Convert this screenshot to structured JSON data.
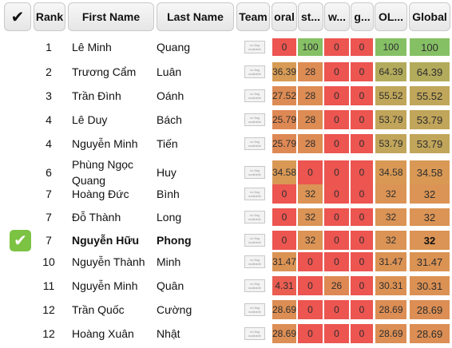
{
  "header": {
    "check": "✔",
    "rank": "Rank",
    "first_name": "First Name",
    "last_name": "Last Name",
    "team": "Team",
    "col1": "oral",
    "col2": "st...",
    "col3": "w...",
    "col4": "g...",
    "col5": "OL...",
    "col6": "Global"
  },
  "flag_text": "no flag available",
  "selected_check": "✔",
  "colors": {
    "header_bg": "#ececec",
    "check_green": "#7cc243",
    "cell_red": "#ec5550",
    "cell_orange": "#d99a55",
    "cell_green": "#86c065"
  },
  "rows": [
    {
      "rank": "1",
      "first": "Lê Minh",
      "last": "Quang",
      "scores": [
        "0",
        "100",
        "0",
        "0",
        "100",
        "100"
      ]
    },
    {
      "rank": "2",
      "first": "Trương Cẩm",
      "last": "Luân",
      "scores": [
        "36.39",
        "28",
        "0",
        "0",
        "64.39",
        "64.39"
      ]
    },
    {
      "rank": "3",
      "first": "Trần Đình",
      "last": "Oánh",
      "scores": [
        "27.52",
        "28",
        "0",
        "0",
        "55.52",
        "55.52"
      ]
    },
    {
      "rank": "4",
      "first": "Lê Duy",
      "last": "Bách",
      "scores": [
        "25.79",
        "28",
        "0",
        "0",
        "53.79",
        "53.79"
      ]
    },
    {
      "rank": "4",
      "first": "Nguyễn Minh",
      "last": "Tiến",
      "scores": [
        "25.79",
        "28",
        "0",
        "0",
        "53.79",
        "53.79"
      ]
    },
    {
      "rank": "6",
      "first": "Phùng Ngọc Quang",
      "last": "Huy",
      "scores": [
        "34.58",
        "0",
        "0",
        "0",
        "34.58",
        "34.58"
      ]
    },
    {
      "rank": "7",
      "first": "Hoàng Đức",
      "last": "Bình",
      "scores": [
        "0",
        "32",
        "0",
        "0",
        "32",
        "32"
      ]
    },
    {
      "rank": "7",
      "first": "Đỗ Thành",
      "last": "Long",
      "scores": [
        "0",
        "32",
        "0",
        "0",
        "32",
        "32"
      ]
    },
    {
      "rank": "7",
      "first": "Nguyễn Hữu",
      "last": "Phong",
      "selected": true,
      "scores": [
        "0",
        "32",
        "0",
        "0",
        "32",
        "32"
      ]
    },
    {
      "rank": "10",
      "first": "Nguyễn Thành",
      "last": "Minh",
      "scores": [
        "31.47",
        "0",
        "0",
        "0",
        "31.47",
        "31.47"
      ]
    },
    {
      "rank": "11",
      "first": "Nguyễn Minh",
      "last": "Quân",
      "scores": [
        "4.31",
        "0",
        "26",
        "0",
        "30.31",
        "30.31"
      ]
    },
    {
      "rank": "12",
      "first": "Trần Quốc",
      "last": "Cường",
      "scores": [
        "28.69",
        "0",
        "0",
        "0",
        "28.69",
        "28.69"
      ]
    },
    {
      "rank": "12",
      "first": "Hoàng Xuân",
      "last": "Nhật",
      "scores": [
        "28.69",
        "0",
        "0",
        "0",
        "28.69",
        "28.69"
      ]
    }
  ]
}
